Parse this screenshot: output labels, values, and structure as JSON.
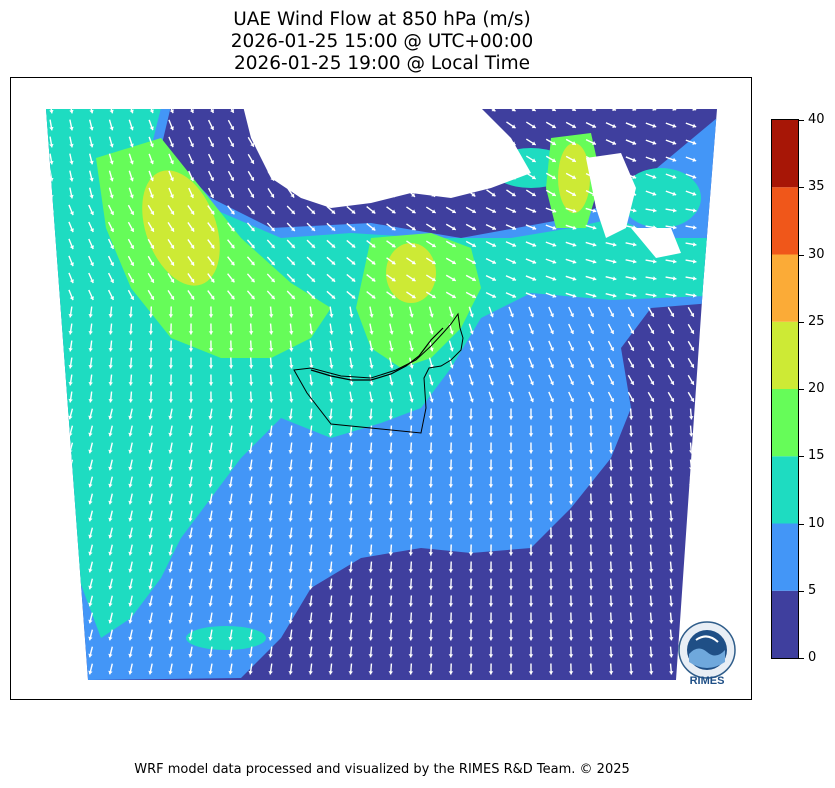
{
  "title": {
    "line1": "UAE Wind Flow at 850 hPa (m/s)",
    "line2": "2026-01-25 15:00 @ UTC+00:00",
    "line3": "2026-01-25 19:00 @ Local Time"
  },
  "map": {
    "field": "wind speed",
    "level": "850 hPa",
    "units": "m/s",
    "region": "UAE and surroundings",
    "arrow_color": "#ffffff",
    "masked_color": "#ffffff",
    "border_color": "#000000",
    "wind_pattern": "westerly-northwesterly flow over the Gulf, veering to northerly/north-easterly over the Arabian Peninsula",
    "max_speed_band": "20-25",
    "min_speed_band": "0-5"
  },
  "colorbar": {
    "ticks": [
      "0",
      "5",
      "10",
      "15",
      "20",
      "25",
      "30",
      "35",
      "40"
    ],
    "bands": [
      {
        "from": 0,
        "to": 5,
        "color": "#3f3f9e"
      },
      {
        "from": 5,
        "to": 10,
        "color": "#4396f7"
      },
      {
        "from": 10,
        "to": 15,
        "color": "#1edcc1"
      },
      {
        "from": 15,
        "to": 20,
        "color": "#66fc59"
      },
      {
        "from": 20,
        "to": 25,
        "color": "#cdea35"
      },
      {
        "from": 25,
        "to": 30,
        "color": "#fbab37"
      },
      {
        "from": 30,
        "to": 35,
        "color": "#f0571a"
      },
      {
        "from": 35,
        "to": 40,
        "color": "#a71606"
      }
    ]
  },
  "logo": {
    "name": "RIMES",
    "text": "RIMES",
    "ring_text": "Regional Integrated Multi-Hazard Early Warning System"
  },
  "footer": "WRF model data processed and visualized by the RIMES R&D Team. © 2025"
}
